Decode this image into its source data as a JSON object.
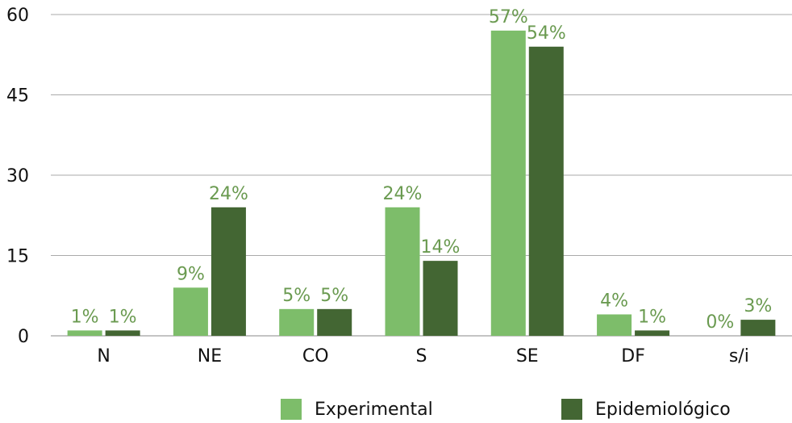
{
  "chart_data": {
    "type": "bar",
    "categories": [
      "N",
      "NE",
      "CO",
      "S",
      "SE",
      "DF",
      "s/i"
    ],
    "series": [
      {
        "name": "Experimental",
        "color": "#7dbd6a",
        "values": [
          1,
          9,
          5,
          24,
          57,
          4,
          0
        ],
        "value_labels": [
          "1%",
          "9%",
          "5%",
          "24%",
          "57%",
          "4%",
          "0%"
        ]
      },
      {
        "name": "Epidemiológico",
        "color": "#436633",
        "values": [
          1,
          24,
          5,
          14,
          54,
          1,
          3
        ],
        "value_labels": [
          "1%",
          "24%",
          "5%",
          "14%",
          "54%",
          "1%",
          "3%"
        ]
      }
    ],
    "ylim": [
      0,
      60
    ],
    "yticks": [
      0,
      15,
      30,
      45,
      60
    ],
    "grid": true,
    "legend": "bottom"
  }
}
